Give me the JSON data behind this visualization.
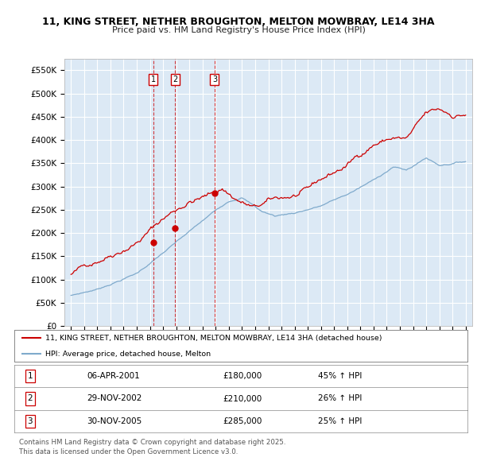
{
  "title_line1": "11, KING STREET, NETHER BROUGHTON, MELTON MOWBRAY, LE14 3HA",
  "title_line2": "Price paid vs. HM Land Registry's House Price Index (HPI)",
  "background_color": "#dce9f5",
  "grid_color": "#ffffff",
  "red_line_color": "#cc0000",
  "blue_line_color": "#7faacc",
  "sale_dates_num": [
    2001.26,
    2002.91,
    2005.92
  ],
  "sale_prices": [
    180000,
    210000,
    285000
  ],
  "sale_labels": [
    "1",
    "2",
    "3"
  ],
  "legend_entries": [
    "11, KING STREET, NETHER BROUGHTON, MELTON MOWBRAY, LE14 3HA (detached house)",
    "HPI: Average price, detached house, Melton"
  ],
  "table_rows": [
    [
      "1",
      "06-APR-2001",
      "£180,000",
      "45% ↑ HPI"
    ],
    [
      "2",
      "29-NOV-2002",
      "£210,000",
      "26% ↑ HPI"
    ],
    [
      "3",
      "30-NOV-2005",
      "£285,000",
      "25% ↑ HPI"
    ]
  ],
  "footer": "Contains HM Land Registry data © Crown copyright and database right 2025.\nThis data is licensed under the Open Government Licence v3.0.",
  "ylim": [
    0,
    575000
  ],
  "yticks": [
    0,
    50000,
    100000,
    150000,
    200000,
    250000,
    300000,
    350000,
    400000,
    450000,
    500000,
    550000
  ],
  "xlim_start": 1994.5,
  "xlim_end": 2025.5,
  "xticks": [
    1995,
    1996,
    1997,
    1998,
    1999,
    2000,
    2001,
    2002,
    2003,
    2004,
    2005,
    2006,
    2007,
    2008,
    2009,
    2010,
    2011,
    2012,
    2013,
    2014,
    2015,
    2016,
    2017,
    2018,
    2019,
    2020,
    2021,
    2022,
    2023,
    2024,
    2025
  ]
}
